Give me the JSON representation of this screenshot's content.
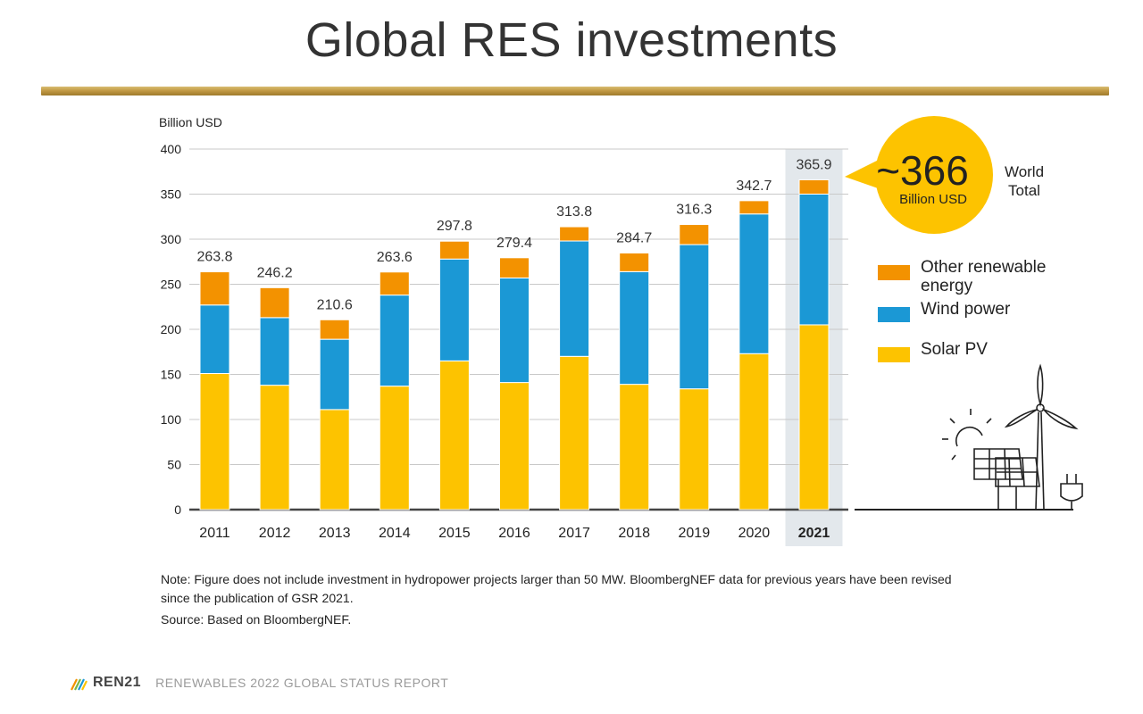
{
  "slide": {
    "title": "Global RES investments"
  },
  "chart_data": {
    "type": "bar",
    "stacked": true,
    "ylabel": "Billion USD",
    "ylim": [
      0,
      400
    ],
    "yticks": [
      0,
      50,
      100,
      150,
      200,
      250,
      300,
      350,
      400
    ],
    "grid": true,
    "legend_position": "right",
    "categories": [
      "2011",
      "2012",
      "2013",
      "2014",
      "2015",
      "2016",
      "2017",
      "2018",
      "2019",
      "2020",
      "2021"
    ],
    "highlight_category": "2021",
    "series": [
      {
        "name": "Solar PV",
        "color": "#fdc300",
        "values": [
          151,
          138,
          111,
          137,
          165,
          141,
          170,
          139,
          134,
          173,
          205
        ]
      },
      {
        "name": "Wind power",
        "color": "#1b98d5",
        "values": [
          76,
          75,
          78,
          101,
          113,
          116,
          128,
          125,
          160,
          155,
          145
        ]
      },
      {
        "name": "Other renewable energy",
        "color": "#f39200",
        "values": [
          36.8,
          33.2,
          21.6,
          25.6,
          19.8,
          22.4,
          15.8,
          20.7,
          22.3,
          14.7,
          15.9
        ]
      }
    ],
    "totals": [
      "263.8",
      "246.2",
      "210.6",
      "263.6",
      "297.8",
      "279.4",
      "313.8",
      "284.7",
      "316.3",
      "342.7",
      "365.9"
    ],
    "legend": [
      {
        "label_lines": [
          "Other renewable",
          "energy"
        ],
        "color": "#f39200"
      },
      {
        "label_lines": [
          "Wind power"
        ],
        "color": "#1b98d5"
      },
      {
        "label_lines": [
          "Solar PV"
        ],
        "color": "#fdc300"
      }
    ],
    "callout": {
      "big": "~366",
      "small": "Billion USD",
      "side_lines": [
        "World",
        "Total"
      ],
      "color": "#fdc300"
    }
  },
  "notes": {
    "note_line1": "Note: Figure does not include investment in hydropower projects larger than 50 MW. BloombergNEF data for previous years have been revised",
    "note_line2": "since the publication of GSR 2021.",
    "source": "Source: Based on BloombergNEF."
  },
  "footer": {
    "logo": "REN21",
    "report": "RENEWABLES 2022 GLOBAL STATUS REPORT"
  },
  "icons": [
    "sun-icon",
    "solar-panel-icon",
    "wind-turbine-icon",
    "plug-icon",
    "ren21-logo-icon"
  ]
}
